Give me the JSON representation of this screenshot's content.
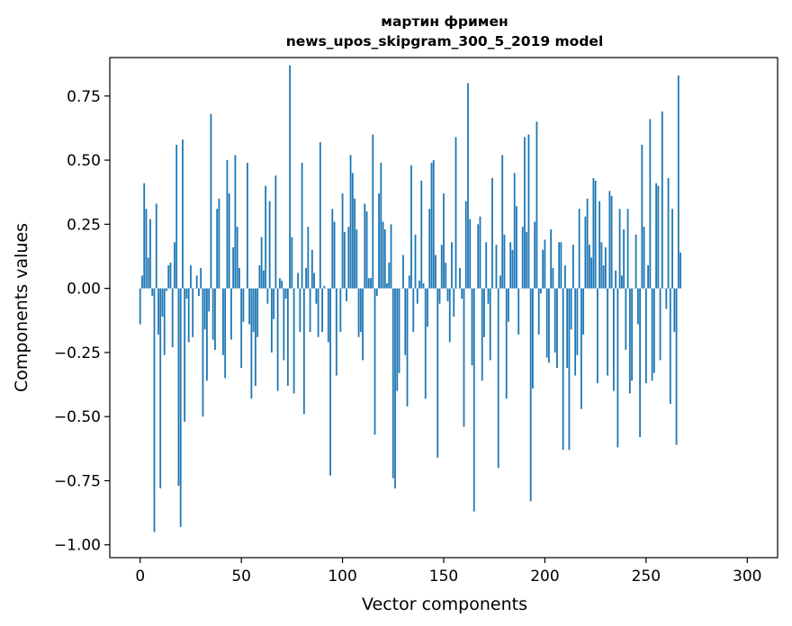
{
  "chart_data": {
    "type": "bar",
    "title": "мартин фримен",
    "subtitle": "news_upos_skipgram_300_5_2019 model",
    "xlabel": "Vector components",
    "ylabel": "Components values",
    "xlim": [
      -15,
      315
    ],
    "ylim": [
      -1.05,
      0.9
    ],
    "xticks": [
      0,
      50,
      100,
      150,
      200,
      250,
      300
    ],
    "xtick_labels": [
      "0",
      "50",
      "100",
      "150",
      "200",
      "250",
      "300"
    ],
    "yticks": [
      0.75,
      0.5,
      0.25,
      0.0,
      -0.25,
      -0.5,
      -0.75,
      -1.0
    ],
    "ytick_labels": [
      "0.75",
      "0.50",
      "0.25",
      "0.00",
      "−0.25",
      "−0.50",
      "−0.75",
      "−1.00"
    ],
    "bar_color": "#1f77b4",
    "grid": false,
    "values": [
      -0.14,
      0.05,
      0.41,
      0.31,
      0.12,
      0.27,
      -0.03,
      -0.95,
      0.33,
      -0.18,
      -0.78,
      -0.11,
      -0.26,
      -0.01,
      0.09,
      0.1,
      -0.23,
      0.18,
      0.56,
      -0.77,
      -0.93,
      0.58,
      -0.52,
      -0.04,
      -0.21,
      0.09,
      -0.19,
      0.0,
      0.05,
      -0.03,
      0.08,
      -0.5,
      -0.16,
      -0.36,
      -0.09,
      0.68,
      -0.2,
      -0.24,
      0.31,
      0.35,
      0.0,
      -0.26,
      -0.35,
      0.5,
      0.37,
      -0.2,
      0.16,
      0.52,
      0.24,
      0.08,
      -0.31,
      -0.13,
      0.0,
      0.49,
      -0.14,
      -0.43,
      -0.17,
      -0.38,
      -0.19,
      0.09,
      0.2,
      0.07,
      0.4,
      -0.06,
      0.34,
      -0.25,
      -0.12,
      0.44,
      -0.4,
      0.04,
      0.03,
      -0.28,
      -0.04,
      -0.38,
      0.87,
      0.2,
      -0.41,
      0.0,
      0.06,
      -0.17,
      0.49,
      -0.49,
      0.08,
      0.24,
      -0.17,
      0.15,
      0.06,
      -0.06,
      -0.19,
      0.57,
      -0.17,
      0.01,
      0.0,
      -0.21,
      -0.73,
      0.31,
      0.26,
      -0.34,
      0.0,
      -0.17,
      0.37,
      0.22,
      -0.05,
      0.24,
      0.52,
      0.45,
      0.35,
      0.23,
      -0.19,
      -0.17,
      -0.28,
      0.33,
      0.3,
      0.04,
      0.04,
      0.6,
      -0.57,
      -0.03,
      0.37,
      0.49,
      0.26,
      0.23,
      0.02,
      0.1,
      0.25,
      -0.74,
      -0.78,
      -0.4,
      -0.33,
      0.0,
      0.13,
      -0.26,
      -0.46,
      0.05,
      0.48,
      -0.17,
      0.21,
      -0.06,
      0.03,
      0.42,
      0.02,
      -0.43,
      -0.15,
      0.31,
      0.49,
      0.5,
      0.13,
      -0.66,
      -0.06,
      0.17,
      0.37,
      0.1,
      -0.05,
      -0.21,
      0.18,
      -0.11,
      0.59,
      0.0,
      0.08,
      -0.04,
      -0.54,
      0.34,
      0.8,
      0.27,
      -0.3,
      -0.87,
      0.0,
      0.25,
      0.28,
      -0.36,
      -0.19,
      0.18,
      -0.06,
      -0.28,
      0.43,
      0.0,
      0.17,
      -0.7,
      0.05,
      0.52,
      0.21,
      -0.43,
      -0.13,
      0.18,
      0.15,
      0.45,
      0.32,
      -0.18,
      0.0,
      0.24,
      0.59,
      0.22,
      0.6,
      -0.83,
      -0.39,
      0.26,
      0.65,
      -0.18,
      -0.02,
      0.15,
      0.19,
      -0.27,
      -0.29,
      0.23,
      0.08,
      -0.25,
      -0.31,
      0.18,
      0.18,
      -0.63,
      0.09,
      -0.31,
      -0.63,
      -0.16,
      0.17,
      -0.34,
      -0.26,
      0.31,
      -0.47,
      -0.18,
      0.28,
      0.35,
      0.17,
      0.12,
      0.43,
      0.42,
      -0.37,
      0.34,
      0.18,
      0.09,
      0.16,
      -0.34,
      0.38,
      0.36,
      -0.4,
      0.07,
      -0.62,
      0.31,
      0.05,
      0.23,
      -0.24,
      0.31,
      -0.41,
      -0.36,
      0.0,
      0.21,
      -0.14,
      -0.58,
      0.56,
      0.24,
      -0.37,
      0.09,
      0.66,
      -0.36,
      -0.33,
      0.41,
      0.4,
      -0.28,
      0.69,
      0.0,
      -0.08,
      0.43,
      -0.45,
      0.31,
      -0.17,
      -0.61,
      0.83,
      0.14
    ]
  }
}
